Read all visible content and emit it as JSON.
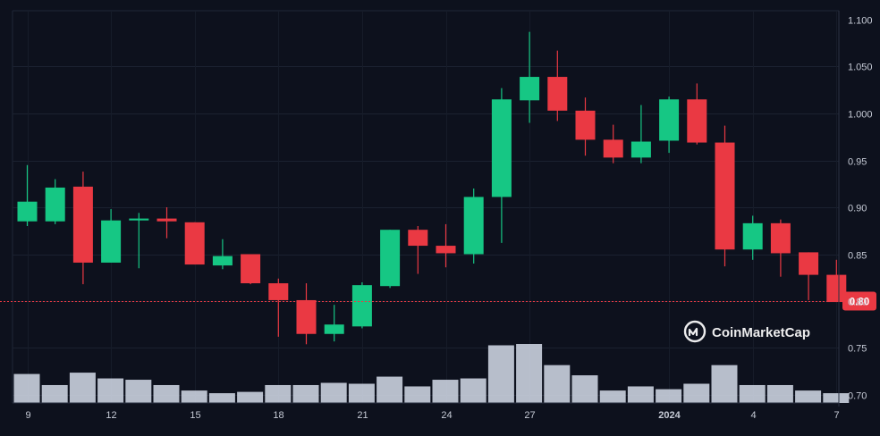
{
  "chart_data": {
    "type": "candlestick",
    "x_tick_labels": [
      "9",
      "12",
      "15",
      "18",
      "21",
      "24",
      "27",
      "2024",
      "4",
      "7"
    ],
    "y_tick_labels": [
      "1.100",
      "1.050",
      "1.000",
      "0.95",
      "0.90",
      "0.85",
      "0.80",
      "0.75",
      "0.70"
    ],
    "y_ticks": [
      1.1,
      1.05,
      1.0,
      0.95,
      0.9,
      0.85,
      0.8,
      0.75,
      0.7
    ],
    "ylim": [
      0.7,
      1.1
    ],
    "grid": true,
    "current_price": 0.8,
    "current_price_label": "0.80",
    "up_color": "#16c784",
    "down_color": "#ea3943",
    "volume_color": "#cfd6e4",
    "watermark_text": "CoinMarketCap",
    "x_tick_days": [
      9,
      12,
      15,
      18,
      21,
      24,
      27,
      32,
      35,
      38
    ],
    "candles": [
      {
        "day": 9,
        "open": 0.885,
        "high": 0.945,
        "low": 0.88,
        "close": 0.906,
        "volume": 0.0196
      },
      {
        "day": 10,
        "open": 0.885,
        "high": 0.93,
        "low": 0.882,
        "close": 0.921,
        "volume": 0.0121
      },
      {
        "day": 11,
        "open": 0.922,
        "high": 0.938,
        "low": 0.818,
        "close": 0.841,
        "volume": 0.0205
      },
      {
        "day": 12,
        "open": 0.841,
        "high": 0.898,
        "low": 0.841,
        "close": 0.886,
        "volume": 0.0166
      },
      {
        "day": 13,
        "open": 0.886,
        "high": 0.894,
        "low": 0.835,
        "close": 0.888,
        "volume": 0.0157
      },
      {
        "day": 14,
        "open": 0.888,
        "high": 0.9,
        "low": 0.867,
        "close": 0.885,
        "volume": 0.0121
      },
      {
        "day": 15,
        "open": 0.884,
        "high": 0.884,
        "low": 0.839,
        "close": 0.839,
        "volume": 0.0084
      },
      {
        "day": 16,
        "open": 0.838,
        "high": 0.866,
        "low": 0.834,
        "close": 0.848,
        "volume": 0.0066
      },
      {
        "day": 17,
        "open": 0.85,
        "high": 0.85,
        "low": 0.818,
        "close": 0.819,
        "volume": 0.0075
      },
      {
        "day": 18,
        "open": 0.819,
        "high": 0.824,
        "low": 0.762,
        "close": 0.801,
        "volume": 0.0121
      },
      {
        "day": 19,
        "open": 0.801,
        "high": 0.819,
        "low": 0.754,
        "close": 0.765,
        "volume": 0.0121
      },
      {
        "day": 20,
        "open": 0.765,
        "high": 0.796,
        "low": 0.757,
        "close": 0.775,
        "volume": 0.0136
      },
      {
        "day": 21,
        "open": 0.773,
        "high": 0.82,
        "low": 0.771,
        "close": 0.817,
        "volume": 0.013
      },
      {
        "day": 22,
        "open": 0.816,
        "high": 0.876,
        "low": 0.814,
        "close": 0.876,
        "volume": 0.0178
      },
      {
        "day": 23,
        "open": 0.876,
        "high": 0.88,
        "low": 0.829,
        "close": 0.859,
        "volume": 0.0112
      },
      {
        "day": 24,
        "open": 0.859,
        "high": 0.882,
        "low": 0.836,
        "close": 0.851,
        "volume": 0.0157
      },
      {
        "day": 25,
        "open": 0.85,
        "high": 0.92,
        "low": 0.84,
        "close": 0.911,
        "volume": 0.0166
      },
      {
        "day": 26,
        "open": 0.911,
        "high": 1.027,
        "low": 0.862,
        "close": 1.015,
        "volume": 0.039
      },
      {
        "day": 27,
        "open": 1.014,
        "high": 1.087,
        "low": 0.99,
        "close": 1.039,
        "volume": 0.0399
      },
      {
        "day": 28,
        "open": 1.039,
        "high": 1.067,
        "low": 0.992,
        "close": 1.003,
        "volume": 0.0256
      },
      {
        "day": 29,
        "open": 1.003,
        "high": 1.017,
        "low": 0.955,
        "close": 0.972,
        "volume": 0.0187
      },
      {
        "day": 30,
        "open": 0.972,
        "high": 0.988,
        "low": 0.947,
        "close": 0.953,
        "volume": 0.0084
      },
      {
        "day": 31,
        "open": 0.953,
        "high": 1.009,
        "low": 0.947,
        "close": 0.97,
        "volume": 0.0112
      },
      {
        "day": 32,
        "open": 0.971,
        "high": 1.018,
        "low": 0.958,
        "close": 1.015,
        "volume": 0.0093
      },
      {
        "day": 33,
        "open": 1.015,
        "high": 1.032,
        "low": 0.967,
        "close": 0.969,
        "volume": 0.013
      },
      {
        "day": 34,
        "open": 0.969,
        "high": 0.987,
        "low": 0.837,
        "close": 0.855,
        "volume": 0.0256
      },
      {
        "day": 35,
        "open": 0.855,
        "high": 0.891,
        "low": 0.844,
        "close": 0.883,
        "volume": 0.0121
      },
      {
        "day": 36,
        "open": 0.883,
        "high": 0.887,
        "low": 0.826,
        "close": 0.851,
        "volume": 0.0121
      },
      {
        "day": 37,
        "open": 0.852,
        "high": 0.852,
        "low": 0.801,
        "close": 0.828,
        "volume": 0.0084
      },
      {
        "day": 38,
        "open": 0.828,
        "high": 0.844,
        "low": 0.799,
        "close": 0.799,
        "volume": 0.0066
      }
    ]
  }
}
